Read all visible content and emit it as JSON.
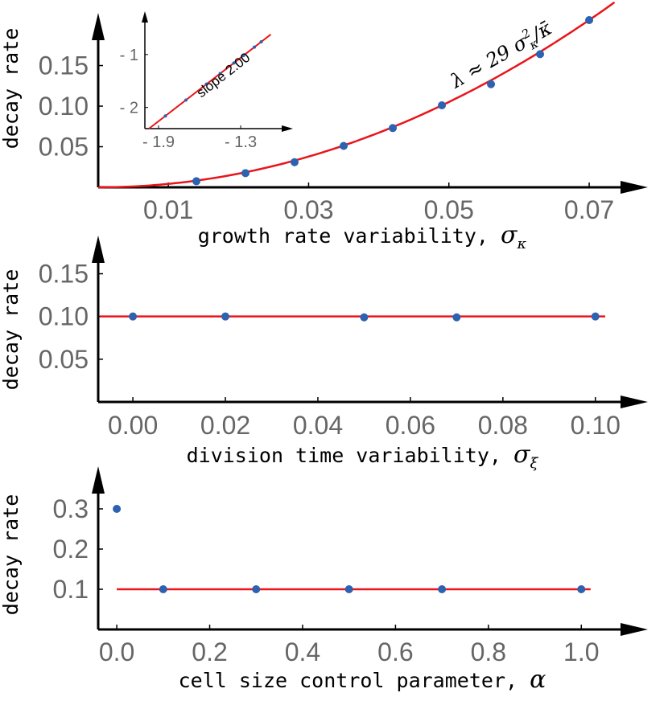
{
  "colors": {
    "fit": "#e8151b",
    "points": "#2d62b0",
    "axis": "#000000",
    "ticks": "#666666"
  },
  "chart_data": [
    {
      "type": "scatter",
      "ylabel": "decay rate",
      "xlabel_text": "growth rate variability,",
      "xlabel_symbol": "σ",
      "xlabel_subscript": "κ",
      "x": [
        0.014,
        0.021,
        0.028,
        0.035,
        0.042,
        0.049,
        0.056,
        0.063,
        0.07
      ],
      "y": [
        0.0075,
        0.0175,
        0.031,
        0.051,
        0.073,
        0.101,
        0.127,
        0.164,
        0.206
      ],
      "fit": {
        "type": "quadratic",
        "coefficient": 29,
        "label_lhs": "λ ≈ 29",
        "label_sym": "σ",
        "label_sup": "2",
        "label_sub": "κ",
        "label_rest": "/κ̄"
      },
      "xticks": [
        "0.01",
        "0.03",
        "0.05",
        "0.07"
      ],
      "xtick_values": [
        0.01,
        0.03,
        0.05,
        0.07
      ],
      "yticks": [
        "0.05",
        "0.10",
        "0.15"
      ],
      "ytick_values": [
        0.05,
        0.1,
        0.15
      ],
      "xlim": [
        0.0,
        0.0755
      ],
      "ylim": [
        0.0,
        0.205
      ],
      "inset": {
        "type": "line",
        "annotation": "slope 2.00",
        "slope": 2.0,
        "xticks": [
          "- 1.9",
          "- 1.3"
        ],
        "xtick_values": [
          -1.9,
          -1.3
        ],
        "yticks": [
          "- 1",
          "- 2"
        ],
        "ytick_values": [
          -1,
          -2
        ],
        "x": [
          -1.85,
          -1.7,
          -1.55,
          -1.45,
          -1.35,
          -1.28,
          -1.2,
          -1.15
        ],
        "xlim": [
          -2.0,
          -1.03
        ],
        "ylim": [
          -2.4,
          -0.35
        ]
      }
    },
    {
      "type": "scatter",
      "ylabel": "decay rate",
      "xlabel_text": "division time variability,",
      "xlabel_symbol": "σ",
      "xlabel_subscript": "ξ",
      "x": [
        0.0,
        0.02,
        0.05,
        0.07,
        0.1
      ],
      "y": [
        0.1,
        0.1,
        0.099,
        0.099,
        0.1
      ],
      "fit": {
        "type": "constant",
        "value": 0.1
      },
      "xticks": [
        "0.00",
        "0.02",
        "0.04",
        "0.06",
        "0.08",
        "0.10"
      ],
      "xtick_values": [
        0.0,
        0.02,
        0.04,
        0.06,
        0.08,
        0.1
      ],
      "yticks": [
        "0.05",
        "0.10",
        "0.15"
      ],
      "ytick_values": [
        0.05,
        0.1,
        0.15
      ],
      "xlim": [
        -0.0075,
        0.107
      ],
      "ylim": [
        0.0,
        0.19
      ]
    },
    {
      "type": "scatter",
      "ylabel": "decay rate",
      "xlabel_text": "cell size control parameter,",
      "xlabel_symbol": "α",
      "xlabel_subscript": "",
      "x": [
        0.0,
        0.1,
        0.3,
        0.5,
        0.7,
        1.0
      ],
      "y": [
        0.3,
        0.1,
        0.1,
        0.1,
        0.1,
        0.1
      ],
      "fit": {
        "type": "constant",
        "value": 0.1,
        "x_from": 0.0,
        "x_to": 1.02
      },
      "xticks": [
        "0.0",
        "0.2",
        "0.4",
        "0.6",
        "0.8",
        "1.0"
      ],
      "xtick_values": [
        0.0,
        0.2,
        0.4,
        0.6,
        0.8,
        1.0
      ],
      "yticks": [
        "0.3",
        "0.2",
        "0.1"
      ],
      "ytick_values": [
        0.3,
        0.2,
        0.1
      ],
      "xlim": [
        -0.04,
        1.1
      ],
      "ylim": [
        0.0,
        0.4
      ]
    }
  ]
}
